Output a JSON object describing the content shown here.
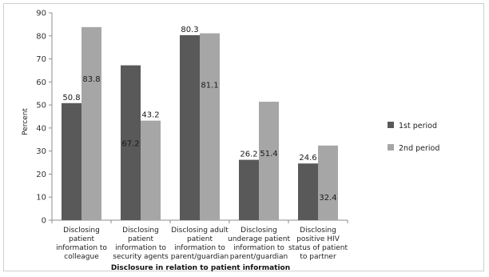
{
  "chart_data": {
    "type": "bar",
    "xlabel": "Disclosure in relation to patient information",
    "ylabel": "Percent",
    "ylim": [
      0,
      90
    ],
    "yticks": [
      0,
      10,
      20,
      30,
      40,
      50,
      60,
      70,
      80,
      90
    ],
    "grid": false,
    "legend_position": "right",
    "categories": [
      [
        "Disclosing",
        "patient",
        "information to",
        "colleague"
      ],
      [
        "Disclosing",
        "patient",
        "information to",
        "security agents"
      ],
      [
        "Disclosing adult",
        "patient",
        "information to",
        "parent/guardian"
      ],
      [
        "Disclosing",
        "underage patient",
        "information to",
        "parent/guardian"
      ],
      [
        "Disclosing",
        "positive HIV",
        "status of patient",
        "to partner"
      ]
    ],
    "series": [
      {
        "name": "1st period",
        "color": "#595959",
        "values": [
          50.8,
          67.2,
          80.3,
          26.2,
          24.6
        ]
      },
      {
        "name": "2nd period",
        "color": "#a6a6a6",
        "values": [
          83.8,
          43.2,
          81.1,
          51.4,
          32.4
        ]
      }
    ]
  }
}
